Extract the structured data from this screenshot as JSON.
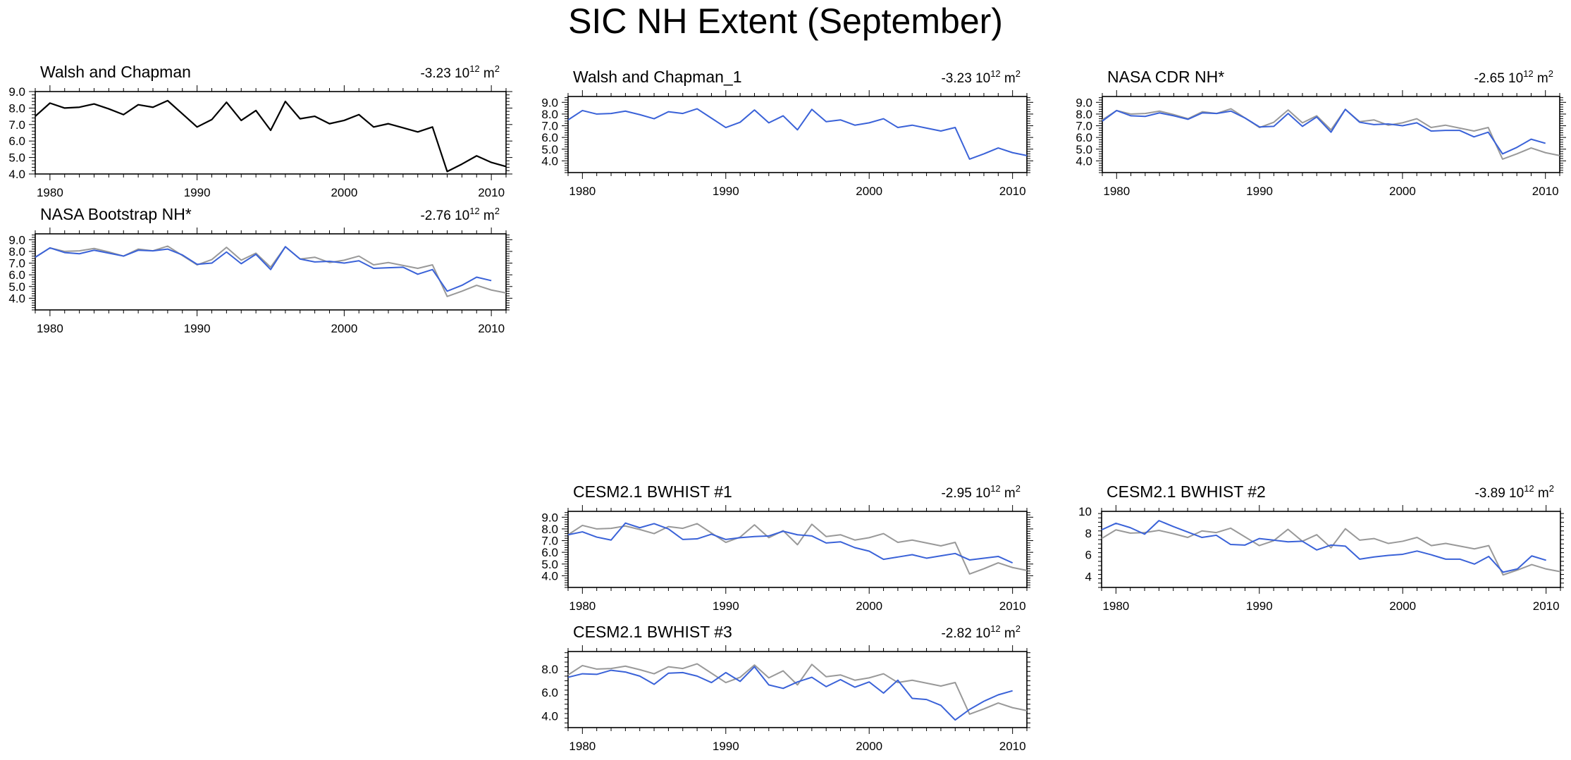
{
  "title": "SIC NH Extent (September)",
  "colors": {
    "reference": "#000000",
    "reference_overlay": "#999999",
    "model": "#3a62d8",
    "axis": "#000000"
  },
  "chart_data": [
    {
      "id": "walsh",
      "type": "line",
      "title": "Walsh and Chapman",
      "trend": "-3.23",
      "trend_exp": "12",
      "trend_unit": "m",
      "trend_unit_exp": "2",
      "xlim": [
        1979,
        2011
      ],
      "ylim": [
        4.0,
        9.0
      ],
      "xticks": [
        "1980",
        "1990",
        "2000",
        "2010"
      ],
      "yticks": [
        "4.0",
        "5.0",
        "6.0",
        "7.0",
        "8.0",
        "9.0"
      ],
      "series": [
        {
          "name": "Walsh and Chapman",
          "role": "reference_solo",
          "x": [
            1979,
            1980,
            1981,
            1982,
            1983,
            1984,
            1985,
            1986,
            1987,
            1988,
            1989,
            1990,
            1991,
            1992,
            1993,
            1994,
            1995,
            1996,
            1997,
            1998,
            1999,
            2000,
            2001,
            2002,
            2003,
            2004,
            2005,
            2006,
            2007,
            2008,
            2009,
            2010,
            2011
          ],
          "values": [
            7.5,
            8.3,
            8.0,
            8.05,
            8.25,
            7.95,
            7.6,
            8.2,
            8.05,
            8.45,
            7.65,
            6.85,
            7.3,
            8.35,
            7.25,
            7.85,
            6.65,
            8.4,
            7.35,
            7.5,
            7.05,
            7.25,
            7.6,
            6.85,
            7.05,
            6.8,
            6.55,
            6.85,
            4.15,
            4.6,
            5.1,
            4.7,
            4.45
          ]
        }
      ]
    },
    {
      "id": "bootstrap",
      "type": "line",
      "title": "NASA Bootstrap NH*",
      "trend": "-2.76",
      "trend_exp": "12",
      "trend_unit": "m",
      "trend_unit_exp": "2",
      "xlim": [
        1979,
        2011
      ],
      "ylim": [
        3.0,
        9.5
      ],
      "xticks": [
        "1980",
        "1990",
        "2000",
        "2010"
      ],
      "yticks": [
        "4.0",
        "5.0",
        "6.0",
        "7.0",
        "8.0",
        "9.0"
      ],
      "series": [
        {
          "name": "Walsh and Chapman",
          "role": "reference",
          "x": [
            1979,
            1980,
            1981,
            1982,
            1983,
            1984,
            1985,
            1986,
            1987,
            1988,
            1989,
            1990,
            1991,
            1992,
            1993,
            1994,
            1995,
            1996,
            1997,
            1998,
            1999,
            2000,
            2001,
            2002,
            2003,
            2004,
            2005,
            2006,
            2007,
            2008,
            2009,
            2010,
            2011
          ],
          "values": [
            7.5,
            8.3,
            8.0,
            8.05,
            8.25,
            7.95,
            7.6,
            8.2,
            8.05,
            8.45,
            7.65,
            6.85,
            7.3,
            8.35,
            7.25,
            7.85,
            6.65,
            8.4,
            7.35,
            7.5,
            7.05,
            7.25,
            7.6,
            6.85,
            7.05,
            6.8,
            6.55,
            6.85,
            4.15,
            4.6,
            5.1,
            4.7,
            4.45
          ]
        },
        {
          "name": "NASA Bootstrap NH",
          "role": "model",
          "x": [
            1979,
            1980,
            1981,
            1982,
            1983,
            1984,
            1985,
            1986,
            1987,
            1988,
            1989,
            1990,
            1991,
            1992,
            1993,
            1994,
            1995,
            1996,
            1997,
            1998,
            1999,
            2000,
            2001,
            2002,
            2003,
            2004,
            2005,
            2006,
            2007,
            2008,
            2009,
            2010
          ],
          "values": [
            7.5,
            8.3,
            7.9,
            7.8,
            8.1,
            7.85,
            7.6,
            8.1,
            8.05,
            8.2,
            7.7,
            6.9,
            7.0,
            7.95,
            6.95,
            7.75,
            6.45,
            8.4,
            7.35,
            7.1,
            7.15,
            7.0,
            7.2,
            6.55,
            6.6,
            6.65,
            6.05,
            6.45,
            4.6,
            5.1,
            5.8,
            5.5
          ]
        }
      ]
    },
    {
      "id": "walsh1",
      "type": "line",
      "title": "Walsh and Chapman_1",
      "trend": "-3.23",
      "trend_exp": "12",
      "trend_unit": "m",
      "trend_unit_exp": "2",
      "xlim": [
        1979,
        2011
      ],
      "ylim": [
        3.0,
        9.5
      ],
      "xticks": [
        "1980",
        "1990",
        "2000",
        "2010"
      ],
      "yticks": [
        "4.0",
        "5.0",
        "6.0",
        "7.0",
        "8.0",
        "9.0"
      ],
      "series": [
        {
          "name": "Walsh and Chapman_1",
          "role": "model",
          "x": [
            1979,
            1980,
            1981,
            1982,
            1983,
            1984,
            1985,
            1986,
            1987,
            1988,
            1989,
            1990,
            1991,
            1992,
            1993,
            1994,
            1995,
            1996,
            1997,
            1998,
            1999,
            2000,
            2001,
            2002,
            2003,
            2004,
            2005,
            2006,
            2007,
            2008,
            2009,
            2010,
            2011
          ],
          "values": [
            7.5,
            8.3,
            8.0,
            8.05,
            8.25,
            7.95,
            7.6,
            8.2,
            8.05,
            8.45,
            7.65,
            6.85,
            7.3,
            8.35,
            7.25,
            7.85,
            6.65,
            8.4,
            7.35,
            7.5,
            7.05,
            7.25,
            7.6,
            6.85,
            7.05,
            6.8,
            6.55,
            6.85,
            4.15,
            4.6,
            5.1,
            4.7,
            4.45
          ]
        }
      ]
    },
    {
      "id": "cdr",
      "type": "line",
      "title": "NASA CDR NH*",
      "trend": "-2.65",
      "trend_exp": "12",
      "trend_unit": "m",
      "trend_unit_exp": "2",
      "xlim": [
        1979,
        2011
      ],
      "ylim": [
        3.0,
        9.5
      ],
      "xticks": [
        "1980",
        "1990",
        "2000",
        "2010"
      ],
      "yticks": [
        "4.0",
        "5.0",
        "6.0",
        "7.0",
        "8.0",
        "9.0"
      ],
      "series": [
        {
          "name": "Walsh and Chapman",
          "role": "reference",
          "x": [
            1979,
            1980,
            1981,
            1982,
            1983,
            1984,
            1985,
            1986,
            1987,
            1988,
            1989,
            1990,
            1991,
            1992,
            1993,
            1994,
            1995,
            1996,
            1997,
            1998,
            1999,
            2000,
            2001,
            2002,
            2003,
            2004,
            2005,
            2006,
            2007,
            2008,
            2009,
            2010,
            2011
          ],
          "values": [
            7.5,
            8.3,
            8.0,
            8.05,
            8.25,
            7.95,
            7.6,
            8.2,
            8.05,
            8.45,
            7.65,
            6.85,
            7.3,
            8.35,
            7.25,
            7.85,
            6.65,
            8.4,
            7.35,
            7.5,
            7.05,
            7.25,
            7.6,
            6.85,
            7.05,
            6.8,
            6.55,
            6.85,
            4.15,
            4.6,
            5.1,
            4.7,
            4.45
          ]
        },
        {
          "name": "NASA CDR NH",
          "role": "model",
          "x": [
            1979,
            1980,
            1981,
            1982,
            1983,
            1984,
            1985,
            1986,
            1987,
            1988,
            1989,
            1990,
            1991,
            1992,
            1993,
            1994,
            1995,
            1996,
            1997,
            1998,
            1999,
            2000,
            2001,
            2002,
            2003,
            2004,
            2005,
            2006,
            2007,
            2008,
            2009,
            2010
          ],
          "values": [
            7.4,
            8.3,
            7.85,
            7.8,
            8.1,
            7.85,
            7.55,
            8.1,
            8.05,
            8.25,
            7.65,
            6.9,
            6.95,
            8.05,
            6.95,
            7.75,
            6.45,
            8.4,
            7.3,
            7.1,
            7.15,
            7.0,
            7.25,
            6.55,
            6.6,
            6.6,
            6.05,
            6.45,
            4.6,
            5.15,
            5.85,
            5.5
          ]
        }
      ]
    },
    {
      "id": "cesm1",
      "type": "line",
      "title": "CESM2.1 BWHIST #1",
      "trend": "-2.95",
      "trend_exp": "12",
      "trend_unit": "m",
      "trend_unit_exp": "2",
      "xlim": [
        1979,
        2011
      ],
      "ylim": [
        3.0,
        9.5
      ],
      "xticks": [
        "1980",
        "1990",
        "2000",
        "2010"
      ],
      "yticks": [
        "4.0",
        "5.0",
        "6.0",
        "7.0",
        "8.0",
        "9.0"
      ],
      "series": [
        {
          "name": "Walsh and Chapman",
          "role": "reference",
          "x": [
            1979,
            1980,
            1981,
            1982,
            1983,
            1984,
            1985,
            1986,
            1987,
            1988,
            1989,
            1990,
            1991,
            1992,
            1993,
            1994,
            1995,
            1996,
            1997,
            1998,
            1999,
            2000,
            2001,
            2002,
            2003,
            2004,
            2005,
            2006,
            2007,
            2008,
            2009,
            2010,
            2011
          ],
          "values": [
            7.5,
            8.3,
            8.0,
            8.05,
            8.25,
            7.95,
            7.6,
            8.2,
            8.05,
            8.45,
            7.65,
            6.85,
            7.3,
            8.35,
            7.25,
            7.85,
            6.65,
            8.4,
            7.35,
            7.5,
            7.05,
            7.25,
            7.6,
            6.85,
            7.05,
            6.8,
            6.55,
            6.85,
            4.15,
            4.6,
            5.1,
            4.7,
            4.45
          ]
        },
        {
          "name": "CESM2.1 BWHIST #1",
          "role": "model",
          "x": [
            1979,
            1980,
            1981,
            1982,
            1983,
            1984,
            1985,
            1986,
            1987,
            1988,
            1989,
            1990,
            1991,
            1992,
            1993,
            1994,
            1995,
            1996,
            1997,
            1998,
            1999,
            2000,
            2001,
            2002,
            2003,
            2004,
            2005,
            2006,
            2007,
            2008,
            2009,
            2010
          ],
          "values": [
            7.5,
            7.75,
            7.3,
            7.05,
            8.5,
            8.1,
            8.45,
            8.0,
            7.1,
            7.15,
            7.55,
            7.1,
            7.25,
            7.35,
            7.4,
            7.8,
            7.5,
            7.4,
            6.8,
            6.9,
            6.4,
            6.1,
            5.4,
            5.6,
            5.8,
            5.5,
            5.7,
            5.9,
            5.35,
            5.5,
            5.65,
            5.1
          ]
        }
      ]
    },
    {
      "id": "cesm2",
      "type": "line",
      "title": "CESM2.1 BWHIST #2",
      "trend": "-3.89",
      "trend_exp": "12",
      "trend_unit": "m",
      "trend_unit_exp": "2",
      "xlim": [
        1979,
        2011
      ],
      "ylim": [
        3.0,
        10.0
      ],
      "xticks": [
        "1980",
        "1990",
        "2000",
        "2010"
      ],
      "yticks": [
        "4",
        "6",
        "8",
        "10"
      ],
      "series": [
        {
          "name": "Walsh and Chapman",
          "role": "reference",
          "x": [
            1979,
            1980,
            1981,
            1982,
            1983,
            1984,
            1985,
            1986,
            1987,
            1988,
            1989,
            1990,
            1991,
            1992,
            1993,
            1994,
            1995,
            1996,
            1997,
            1998,
            1999,
            2000,
            2001,
            2002,
            2003,
            2004,
            2005,
            2006,
            2007,
            2008,
            2009,
            2010,
            2011
          ],
          "values": [
            7.5,
            8.3,
            8.0,
            8.05,
            8.25,
            7.95,
            7.6,
            8.2,
            8.05,
            8.45,
            7.65,
            6.85,
            7.3,
            8.35,
            7.25,
            7.85,
            6.65,
            8.4,
            7.35,
            7.5,
            7.05,
            7.25,
            7.6,
            6.85,
            7.05,
            6.8,
            6.55,
            6.85,
            4.15,
            4.6,
            5.1,
            4.7,
            4.45
          ]
        },
        {
          "name": "CESM2.1 BWHIST #2",
          "role": "model",
          "x": [
            1979,
            1980,
            1981,
            1982,
            1983,
            1984,
            1985,
            1986,
            1987,
            1988,
            1989,
            1990,
            1991,
            1992,
            1993,
            1994,
            1995,
            1996,
            1997,
            1998,
            1999,
            2000,
            2001,
            2002,
            2003,
            2004,
            2005,
            2006,
            2007,
            2008,
            2009,
            2010
          ],
          "values": [
            8.3,
            8.9,
            8.5,
            7.9,
            9.15,
            8.6,
            8.1,
            7.6,
            7.8,
            6.95,
            6.9,
            7.5,
            7.35,
            7.2,
            7.25,
            6.45,
            6.9,
            6.8,
            5.6,
            5.8,
            5.95,
            6.05,
            6.35,
            6.0,
            5.6,
            5.6,
            5.15,
            5.85,
            4.4,
            4.7,
            5.9,
            5.5
          ]
        }
      ]
    },
    {
      "id": "cesm3",
      "type": "line",
      "title": "CESM2.1 BWHIST #3",
      "trend": "-2.82",
      "trend_exp": "12",
      "trend_unit": "m",
      "trend_unit_exp": "2",
      "xlim": [
        1979,
        2011
      ],
      "ylim": [
        3.0,
        9.5
      ],
      "xticks": [
        "1980",
        "1990",
        "2000",
        "2010"
      ],
      "yticks": [
        "4.0",
        "6.0",
        "8.0"
      ],
      "series": [
        {
          "name": "Walsh and Chapman",
          "role": "reference",
          "x": [
            1979,
            1980,
            1981,
            1982,
            1983,
            1984,
            1985,
            1986,
            1987,
            1988,
            1989,
            1990,
            1991,
            1992,
            1993,
            1994,
            1995,
            1996,
            1997,
            1998,
            1999,
            2000,
            2001,
            2002,
            2003,
            2004,
            2005,
            2006,
            2007,
            2008,
            2009,
            2010,
            2011
          ],
          "values": [
            7.5,
            8.3,
            8.0,
            8.05,
            8.25,
            7.95,
            7.6,
            8.2,
            8.05,
            8.45,
            7.65,
            6.85,
            7.3,
            8.35,
            7.25,
            7.85,
            6.65,
            8.4,
            7.35,
            7.5,
            7.05,
            7.25,
            7.6,
            6.85,
            7.05,
            6.8,
            6.55,
            6.85,
            4.15,
            4.6,
            5.1,
            4.7,
            4.45
          ]
        },
        {
          "name": "CESM2.1 BWHIST #3",
          "role": "model",
          "x": [
            1979,
            1980,
            1981,
            1982,
            1983,
            1984,
            1985,
            1986,
            1987,
            1988,
            1989,
            1990,
            1991,
            1992,
            1993,
            1994,
            1995,
            1996,
            1997,
            1998,
            1999,
            2000,
            2001,
            2002,
            2003,
            2004,
            2005,
            2006,
            2007,
            2008,
            2009,
            2010
          ],
          "values": [
            7.3,
            7.6,
            7.55,
            7.9,
            7.75,
            7.4,
            6.7,
            7.65,
            7.7,
            7.4,
            6.85,
            7.7,
            6.95,
            8.2,
            6.65,
            6.35,
            6.9,
            7.3,
            6.5,
            7.1,
            6.45,
            6.9,
            5.95,
            7.05,
            5.5,
            5.4,
            4.9,
            3.65,
            4.55,
            5.25,
            5.8,
            6.15
          ]
        }
      ]
    }
  ]
}
